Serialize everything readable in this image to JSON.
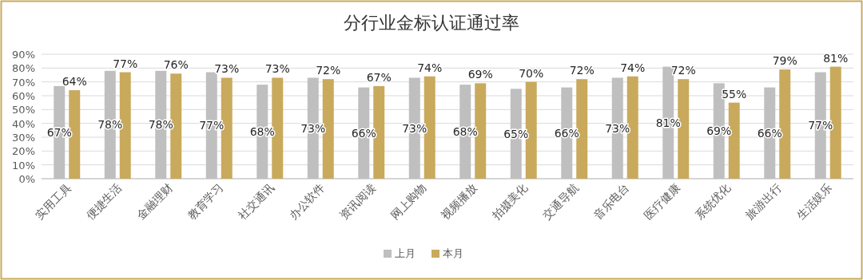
{
  "chart_data": {
    "type": "bar",
    "title": "分行业金标认证通过率",
    "categories": [
      "实用工具",
      "便捷生活",
      "金融理财",
      "教育学习",
      "社交通讯",
      "办公软件",
      "资讯阅读",
      "网上购物",
      "视频播放",
      "拍摄美化",
      "交通导航",
      "音乐电台",
      "医疗健康",
      "系统优化",
      "旅游出行",
      "生活娱乐"
    ],
    "series": [
      {
        "name": "上月",
        "color": "#bfbfbf",
        "values": [
          67,
          78,
          78,
          77,
          68,
          73,
          66,
          73,
          68,
          65,
          66,
          73,
          81,
          69,
          66,
          77
        ],
        "value_labels": [
          "67%",
          "78%",
          "78%",
          "77%",
          "68%",
          "73%",
          "66%",
          "73%",
          "68%",
          "65%",
          "66%",
          "73%",
          "81%",
          "69%",
          "66%",
          "77%"
        ]
      },
      {
        "name": "本月",
        "color": "#c9a95c",
        "values": [
          64,
          77,
          76,
          73,
          73,
          72,
          67,
          74,
          69,
          70,
          72,
          74,
          72,
          55,
          79,
          81
        ],
        "value_labels": [
          "64%",
          "77%",
          "76%",
          "73%",
          "73%",
          "72%",
          "67%",
          "74%",
          "69%",
          "70%",
          "72%",
          "74%",
          "72%",
          "55%",
          "79%",
          "81%"
        ]
      }
    ],
    "ylim": [
      0,
      90
    ],
    "yticks": [
      {
        "value": 0,
        "label": "0%"
      },
      {
        "value": 10,
        "label": "10%"
      },
      {
        "value": 20,
        "label": "20%"
      },
      {
        "value": 30,
        "label": "30%"
      },
      {
        "value": 40,
        "label": "40%"
      },
      {
        "value": 50,
        "label": "50%"
      },
      {
        "value": 60,
        "label": "60%"
      },
      {
        "value": 70,
        "label": "70%"
      },
      {
        "value": 80,
        "label": "80%"
      },
      {
        "value": 90,
        "label": "90%"
      }
    ],
    "grid": "y",
    "legend": "bottom"
  }
}
